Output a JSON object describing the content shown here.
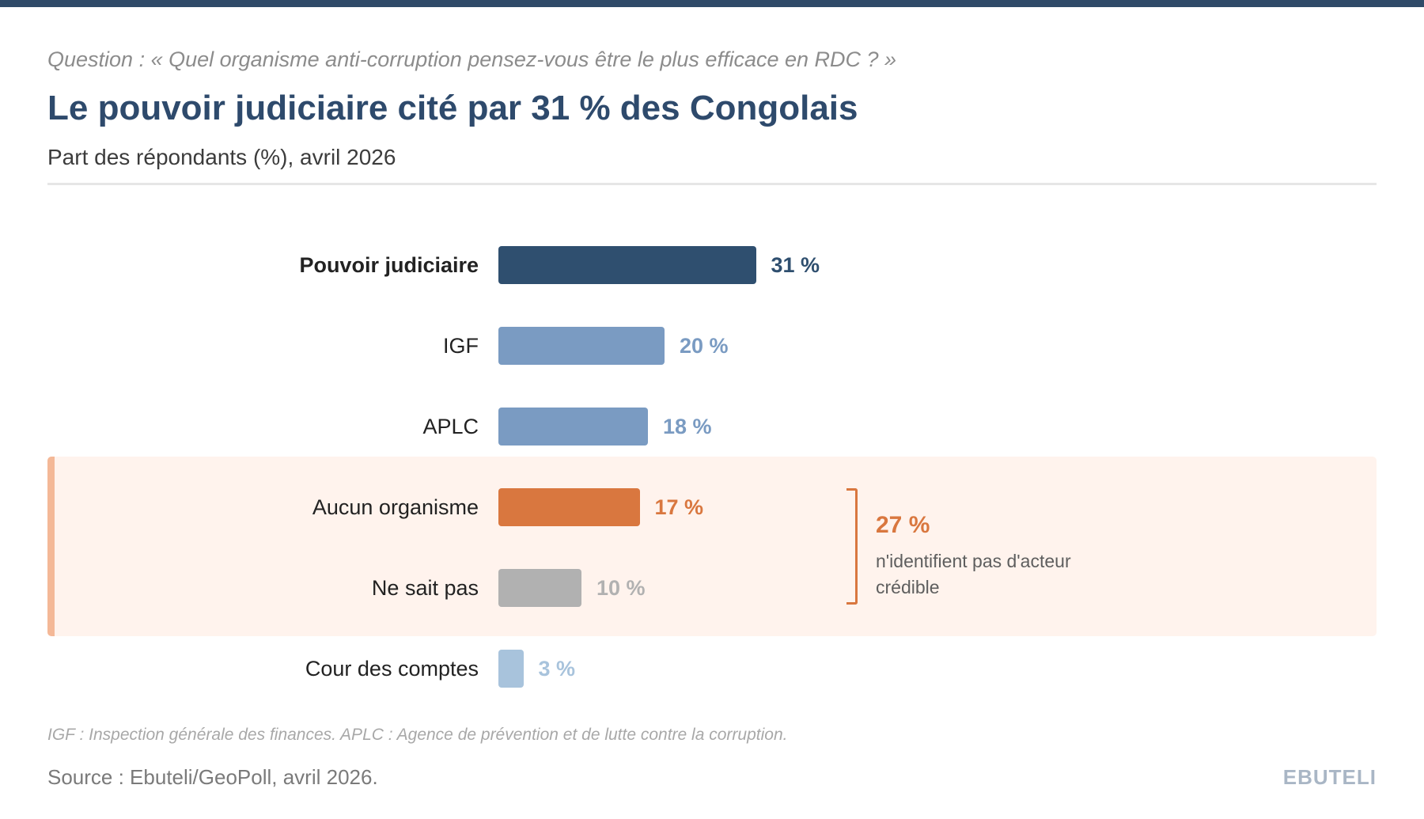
{
  "header": {
    "question": "Question : « Quel organisme anti-corruption pensez-vous être le plus efficace en RDC ? »",
    "title": "Le pouvoir judiciaire cité par 31 % des Congolais",
    "subtitle": "Part des répondants (%), avril 2026"
  },
  "chart_data": {
    "type": "bar",
    "orientation": "horizontal",
    "categories": [
      "Pouvoir judiciaire",
      "IGF",
      "APLC",
      "Aucun organisme",
      "Ne sait pas",
      "Cour des comptes"
    ],
    "values": [
      31,
      20,
      18,
      17,
      10,
      3
    ],
    "value_labels": [
      "31 %",
      "20 %",
      "18 %",
      "17 %",
      "10 %",
      "3 %"
    ],
    "bar_colors": [
      "#2f4f6f",
      "#7a9bc2",
      "#7a9bc2",
      "#d9773f",
      "#b1b1b1",
      "#a8c3dc"
    ],
    "label_colors": [
      "#2f4f6f",
      "#7a9bc2",
      "#7a9bc2",
      "#d9773f",
      "#b1b1b1",
      "#a8c3dc"
    ],
    "xlim": [
      0,
      100
    ],
    "grid": false,
    "highlight_group": {
      "categories": [
        "Aucun organisme",
        "Ne sait pas"
      ],
      "value": 27,
      "value_label": "27 %",
      "note": "n'identifient pas d'acteur crédible",
      "color": "#d9773f"
    }
  },
  "footer": {
    "footnote": "IGF : Inspection générale des finances. APLC : Agence de prévention et de lutte contre la corruption.",
    "source": "Source : Ebuteli/GeoPoll, avril 2026.",
    "brand": "EBUTELI"
  }
}
